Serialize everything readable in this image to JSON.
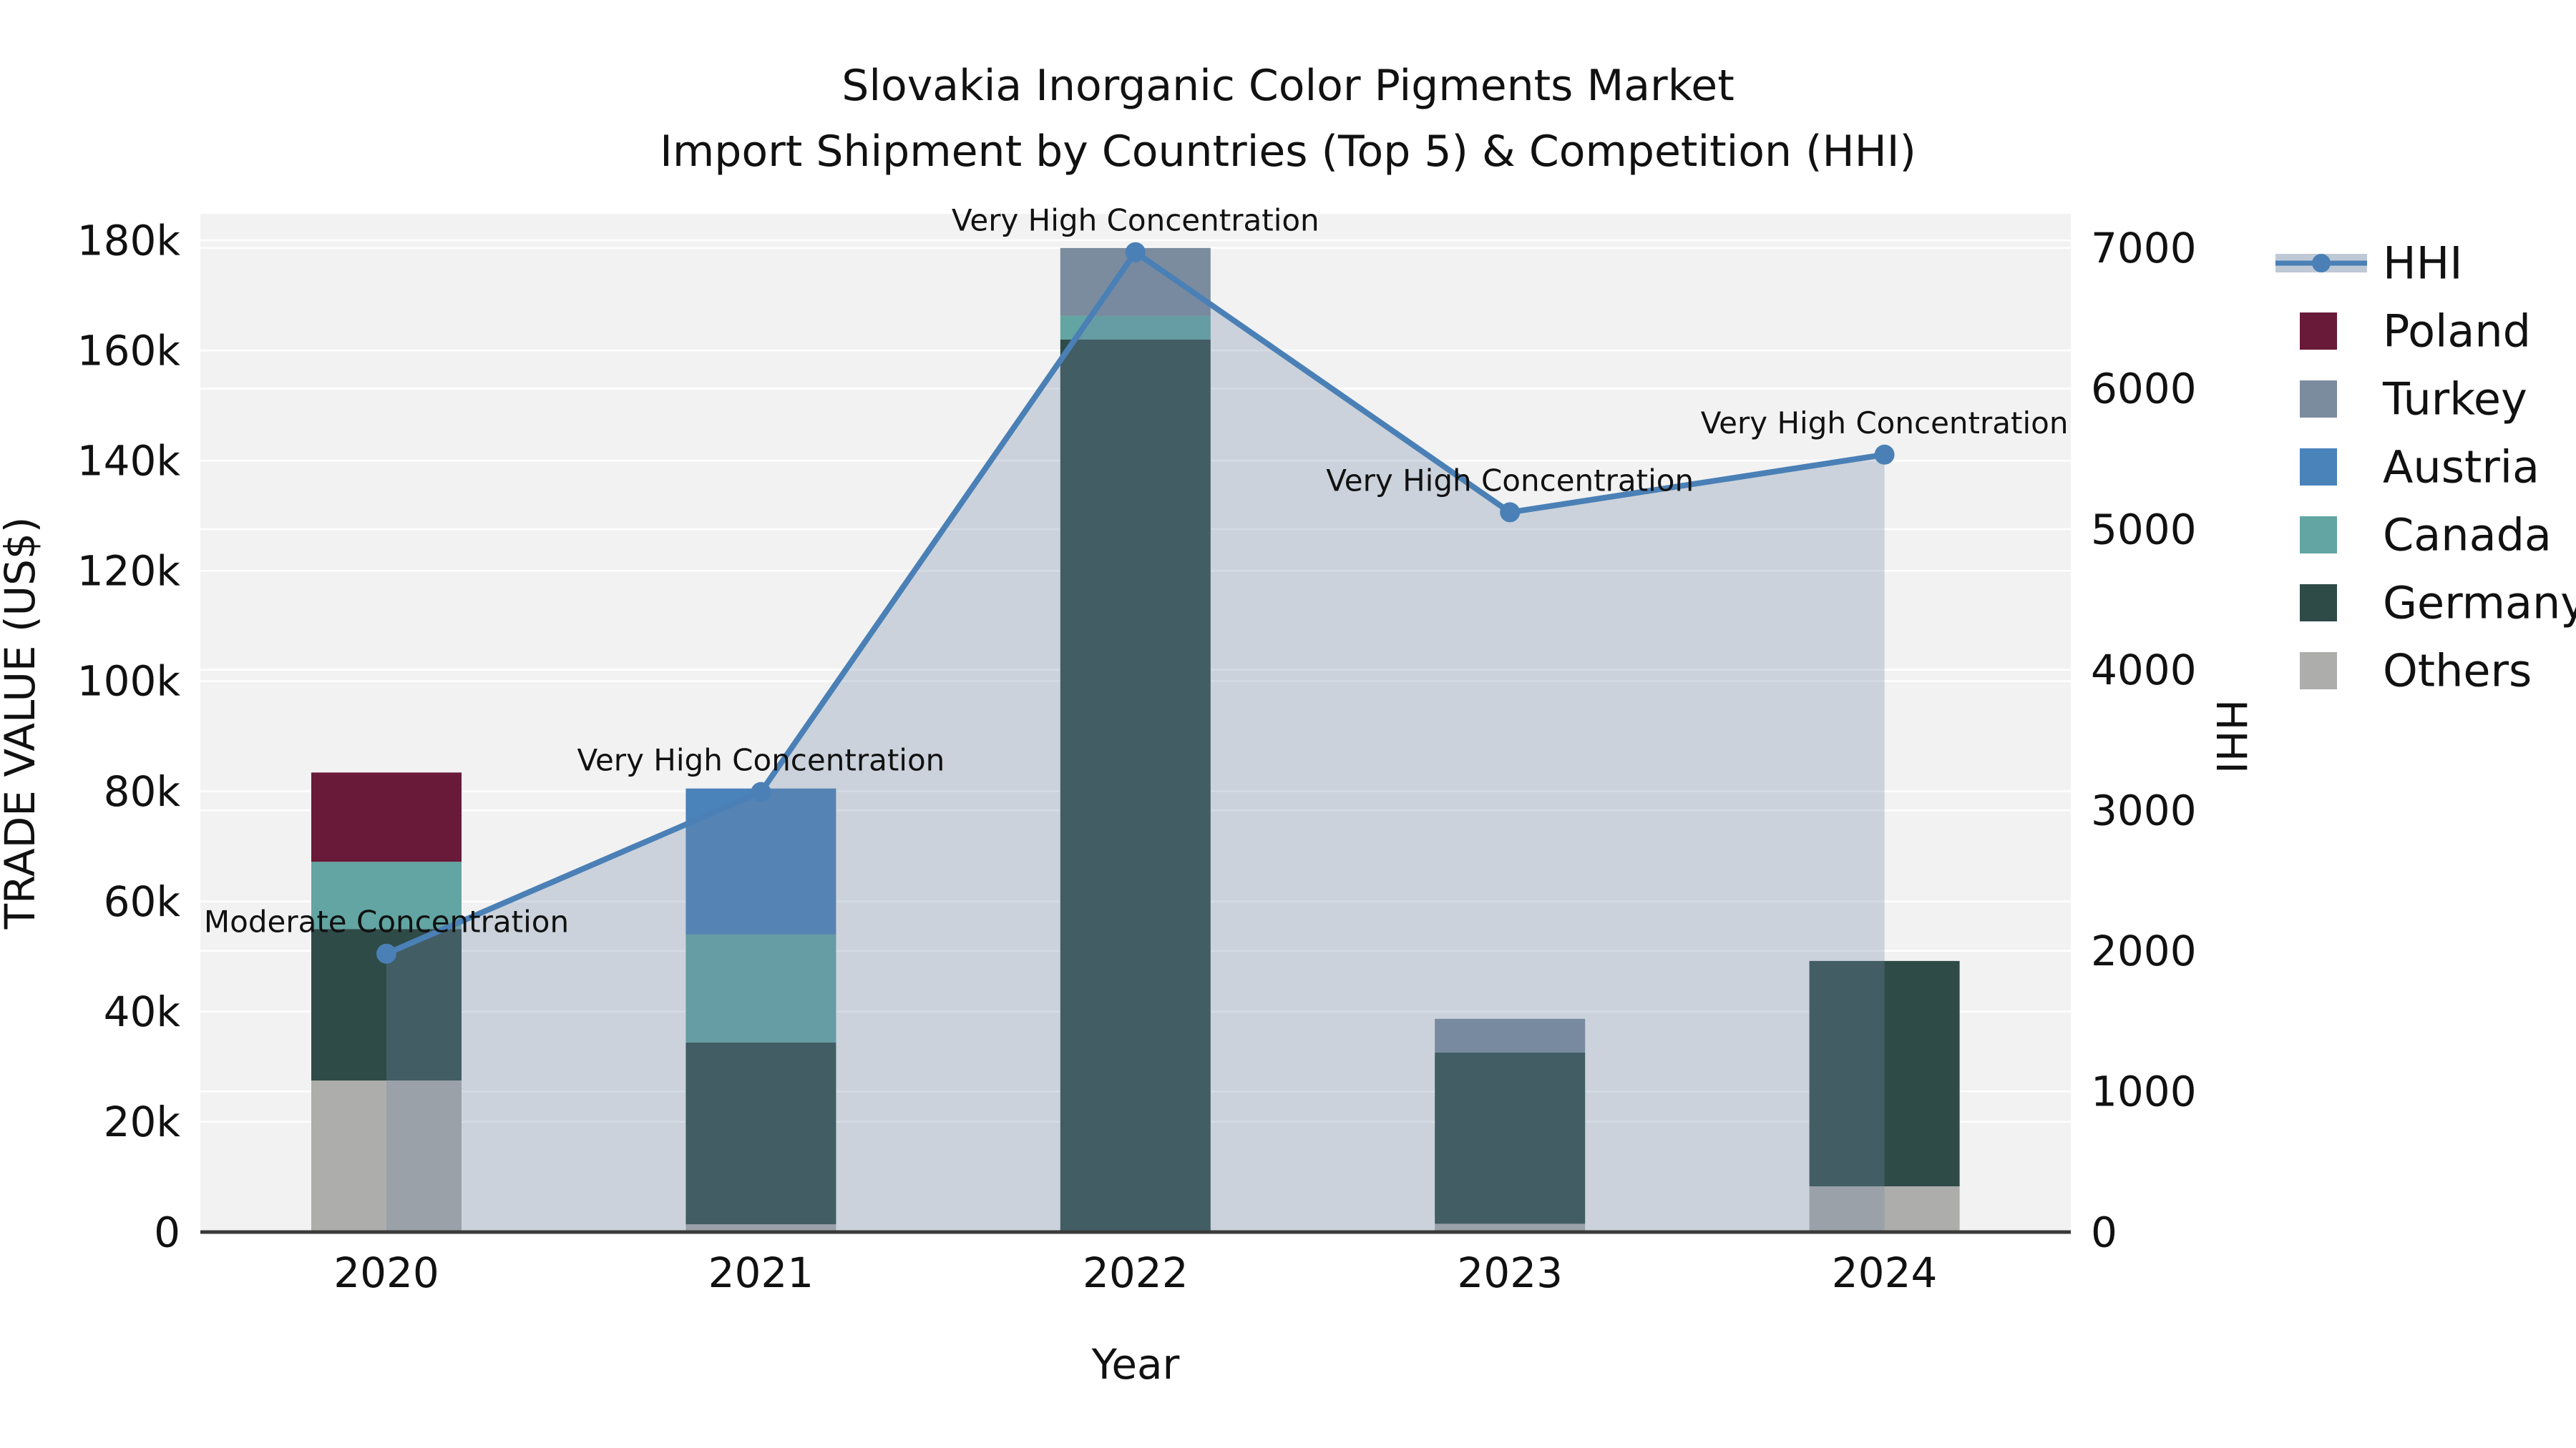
{
  "title": {
    "line1": "Slovakia Inorganic Color Pigments Market",
    "line2": "Import Shipment by Countries (Top 5) & Competition (HHI)"
  },
  "axes": {
    "x_label": "Year",
    "y_left_label": "TRADE VALUE (US$)",
    "y_right_label": "HHI",
    "y_left_tick_labels": [
      "0",
      "20k",
      "40k",
      "60k",
      "80k",
      "100k",
      "120k",
      "140k",
      "160k",
      "180k"
    ],
    "y_left_tick_values": [
      0,
      20,
      40,
      60,
      80,
      100,
      120,
      140,
      160,
      180
    ],
    "y_right_tick_labels": [
      "0",
      "1000",
      "2000",
      "3000",
      "4000",
      "5000",
      "6000",
      "7000"
    ],
    "y_right_tick_values": [
      0,
      1000,
      2000,
      3000,
      4000,
      5000,
      6000,
      7000
    ],
    "x_tick_labels": [
      "2020",
      "2021",
      "2022",
      "2023",
      "2024"
    ]
  },
  "chart_data": {
    "type": "bar+line",
    "categories": [
      "2020",
      "2021",
      "2022",
      "2023",
      "2024"
    ],
    "stack_order_note": "series listed bottom-to-top; values in thousands of US$",
    "series": [
      {
        "name": "Others",
        "color": "#adadab",
        "values": [
          27.5,
          1.4,
          0,
          1.5,
          8.3
        ]
      },
      {
        "name": "Germany",
        "color": "#2e4b48",
        "values": [
          27.5,
          33.0,
          162.0,
          31.1,
          40.9
        ]
      },
      {
        "name": "Canada",
        "color": "#62a5a2",
        "values": [
          12.2,
          19.6,
          4.3,
          0,
          0
        ]
      },
      {
        "name": "Austria",
        "color": "#4a82ba",
        "values": [
          0,
          26.5,
          0,
          0,
          0
        ]
      },
      {
        "name": "Turkey",
        "color": "#7b8c9e",
        "values": [
          0,
          0,
          12.3,
          6.1,
          0
        ]
      },
      {
        "name": "Poland",
        "color": "#6a1a39",
        "values": [
          16.2,
          0,
          0,
          0,
          0
        ]
      }
    ],
    "line": {
      "name": "HHI",
      "color": "#4a80b6",
      "fill_color": "rgba(113,136,165,0.30)",
      "values": [
        1980,
        3130,
        6970,
        5120,
        5530
      ]
    },
    "annotations": [
      {
        "year": "2020",
        "text": "Moderate Concentration"
      },
      {
        "year": "2021",
        "text": "Very High Concentration"
      },
      {
        "year": "2022",
        "text": "Very High Concentration"
      },
      {
        "year": "2023",
        "text": "Very High Concentration"
      },
      {
        "year": "2024",
        "text": "Very High Concentration"
      }
    ],
    "ylim_left": [
      0,
      180
    ],
    "ylim_right": [
      0,
      7000
    ],
    "grid": true,
    "legend_position": "outside-right-top"
  },
  "legend": {
    "items": [
      {
        "label": "HHI",
        "type": "line",
        "color": "#4a80b6",
        "band": "rgba(113,136,165,0.45)"
      },
      {
        "label": "Poland",
        "type": "swatch",
        "color": "#6a1a39"
      },
      {
        "label": "Turkey",
        "type": "swatch",
        "color": "#7b8c9e"
      },
      {
        "label": "Austria",
        "type": "swatch",
        "color": "#4a82ba"
      },
      {
        "label": "Canada",
        "type": "swatch",
        "color": "#62a5a2"
      },
      {
        "label": "Germany",
        "type": "swatch",
        "color": "#2e4b48"
      },
      {
        "label": "Others",
        "type": "swatch",
        "color": "#adadab"
      }
    ]
  },
  "style": {
    "plot_bg": "#f2f2f2",
    "grid_color": "#ffffff",
    "axis_line_color": "#3a3a3a",
    "text_color": "#111111"
  }
}
